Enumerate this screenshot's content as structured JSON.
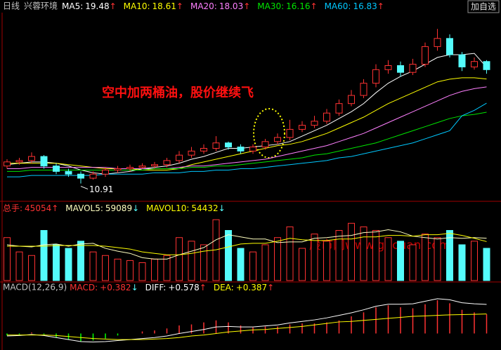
{
  "header": {
    "period": "日线",
    "stock": "兴蓉环境",
    "button": "加自选"
  },
  "watermark": "股市网www.gucuan.com",
  "chart_data": [
    {
      "type": "candlestick",
      "ylim": [
        9.7,
        23.4
      ],
      "up_color": "#ff3232",
      "down_color": "#54fcfc",
      "annotation": "空中加两桶油，股价继续飞",
      "open": [
        12.2,
        12.5,
        12.6,
        12.9,
        12.2,
        11.8,
        11.6,
        11.3,
        11.6,
        11.9,
        12.0,
        12.1,
        12.2,
        12.3,
        12.6,
        13.0,
        13.3,
        13.5,
        13.9,
        13.6,
        13.3,
        13.6,
        14.0,
        14.3,
        14.9,
        15.2,
        15.5,
        16.1,
        16.8,
        17.4,
        18.3,
        19.3,
        19.6,
        19.1,
        19.7,
        21.0,
        21.6,
        20.4,
        19.5,
        19.9
      ],
      "high": [
        12.7,
        12.8,
        13.2,
        13.0,
        12.4,
        12.0,
        11.8,
        11.8,
        12.1,
        12.2,
        12.3,
        12.4,
        12.5,
        12.8,
        13.3,
        13.6,
        13.8,
        14.4,
        14.0,
        13.8,
        13.8,
        14.2,
        14.6,
        15.6,
        15.5,
        15.9,
        16.4,
        17.1,
        17.8,
        18.6,
        19.7,
        20.0,
        19.9,
        20.1,
        21.3,
        22.3,
        21.9,
        20.6,
        20.2,
        20.0
      ],
      "low": [
        12.0,
        12.3,
        12.4,
        12.0,
        11.6,
        11.4,
        10.91,
        11.2,
        11.4,
        11.7,
        11.8,
        12.0,
        12.0,
        12.1,
        12.4,
        12.8,
        13.1,
        13.3,
        13.4,
        13.1,
        13.1,
        13.4,
        13.8,
        14.1,
        14.7,
        15.0,
        15.3,
        15.9,
        16.6,
        17.2,
        18.0,
        19.0,
        18.8,
        18.9,
        19.5,
        20.7,
        20.2,
        19.2,
        19.3,
        19.0
      ],
      "close": [
        12.5,
        12.6,
        12.9,
        12.2,
        11.8,
        11.6,
        11.3,
        11.6,
        11.9,
        12.0,
        12.1,
        12.2,
        12.3,
        12.6,
        13.0,
        13.3,
        13.5,
        13.9,
        13.6,
        13.3,
        13.6,
        14.0,
        14.3,
        14.9,
        15.2,
        15.5,
        16.1,
        16.8,
        17.4,
        18.3,
        19.3,
        19.6,
        19.1,
        19.7,
        21.0,
        21.6,
        20.4,
        19.5,
        19.9,
        19.3
      ],
      "series": [
        {
          "name": "MA5:",
          "color": "#ffffff",
          "trend": "↑",
          "trend_color": "#ff3232",
          "values": [
            12.3,
            12.4,
            12.5,
            12.5,
            12.4,
            12.2,
            11.9,
            11.7,
            11.6,
            11.7,
            11.8,
            12.0,
            12.1,
            12.2,
            12.4,
            12.7,
            12.9,
            13.2,
            13.5,
            13.5,
            13.6,
            13.7,
            13.8,
            14.0,
            14.4,
            14.8,
            15.2,
            15.7,
            16.2,
            16.8,
            17.6,
            18.3,
            18.8,
            19.2,
            19.7,
            20.2,
            20.4,
            20.4,
            20.5,
            19.48
          ]
        },
        {
          "name": "MA10:",
          "color": "#ffff00",
          "trend": "↑",
          "trend_color": "#ff3232",
          "values": [
            12.4,
            12.4,
            12.4,
            12.4,
            12.4,
            12.3,
            12.2,
            12.1,
            12.0,
            12.0,
            12.0,
            11.9,
            11.9,
            11.9,
            12.0,
            12.3,
            12.5,
            12.7,
            12.9,
            13.1,
            13.3,
            13.5,
            13.7,
            13.8,
            14.0,
            14.3,
            14.6,
            15.0,
            15.4,
            15.8,
            16.3,
            16.8,
            17.2,
            17.6,
            18.0,
            18.4,
            18.6,
            18.7,
            18.7,
            18.61
          ]
        },
        {
          "name": "MA20:",
          "color": "#ff80ff",
          "trend": "↑",
          "trend_color": "#ff3232",
          "values": [
            12.0,
            12.0,
            12.1,
            12.1,
            12.1,
            12.1,
            12.1,
            12.1,
            12.1,
            12.0,
            12.0,
            12.0,
            12.0,
            12.0,
            12.1,
            12.2,
            12.2,
            12.3,
            12.4,
            12.5,
            12.6,
            12.7,
            12.9,
            13.1,
            13.3,
            13.5,
            13.7,
            14.0,
            14.3,
            14.6,
            15.0,
            15.4,
            15.8,
            16.2,
            16.6,
            17.0,
            17.4,
            17.7,
            17.9,
            18.03
          ]
        },
        {
          "name": "MA30:",
          "color": "#00e600",
          "trend": "↑",
          "trend_color": "#ff3232",
          "values": [
            11.8,
            11.8,
            11.9,
            11.9,
            11.9,
            11.9,
            11.9,
            11.9,
            11.9,
            11.9,
            11.9,
            11.9,
            12.0,
            12.0,
            12.0,
            12.1,
            12.1,
            12.2,
            12.2,
            12.3,
            12.4,
            12.5,
            12.6,
            12.7,
            12.8,
            13.0,
            13.1,
            13.3,
            13.5,
            13.7,
            13.9,
            14.2,
            14.5,
            14.8,
            15.1,
            15.4,
            15.7,
            15.9,
            16.0,
            16.16
          ]
        },
        {
          "name": "MA60:",
          "color": "#00c8ff",
          "trend": "↑",
          "trend_color": "#ff3232",
          "values": [
            11.4,
            11.4,
            11.5,
            11.5,
            11.5,
            11.5,
            11.5,
            11.5,
            11.6,
            11.6,
            11.6,
            11.6,
            11.7,
            11.7,
            11.7,
            11.8,
            11.8,
            11.9,
            11.9,
            12.0,
            12.0,
            12.1,
            12.2,
            12.3,
            12.4,
            12.5,
            12.6,
            12.8,
            12.9,
            13.1,
            13.3,
            13.5,
            13.7,
            13.9,
            14.2,
            14.5,
            14.8,
            15.9,
            16.3,
            16.83
          ]
        }
      ]
    },
    {
      "type": "volume",
      "ylim": [
        0,
        95000
      ],
      "name": "总手:",
      "name_color": "#ff3232",
      "trend": "↑",
      "trend_color": "#ff3232",
      "values": [
        60000,
        40000,
        35000,
        70000,
        50000,
        45000,
        55000,
        40000,
        35000,
        30000,
        28000,
        25000,
        30000,
        35000,
        60000,
        55000,
        50000,
        85000,
        70000,
        45000,
        40000,
        50000,
        60000,
        75000,
        45000,
        65000,
        55000,
        70000,
        80000,
        75000,
        70000,
        60000,
        55000,
        50000,
        65000,
        60000,
        70000,
        50000,
        55000,
        45054
      ],
      "series": [
        {
          "name": "MAVOL5:",
          "color": "#ffffc0",
          "trend": "↓",
          "trend_color": "#54fcfc",
          "values": [
            50000,
            48000,
            47000,
            50000,
            51000,
            48000,
            51000,
            52000,
            45000,
            41000,
            38000,
            32000,
            30000,
            30000,
            36000,
            41000,
            46000,
            57000,
            64000,
            61000,
            58000,
            58000,
            53000,
            54000,
            54000,
            59000,
            60000,
            62000,
            63000,
            67000,
            68000,
            71000,
            68000,
            62000,
            60000,
            58000,
            60000,
            59000,
            60000,
            59089
          ]
        },
        {
          "name": "MAVOL10:",
          "color": "#ffff00",
          "trend": "↓",
          "trend_color": "#54fcfc",
          "values": [
            48000,
            48000,
            48000,
            48000,
            49000,
            49000,
            49000,
            49000,
            48000,
            46000,
            44000,
            40000,
            38000,
            36000,
            36000,
            38000,
            41000,
            43000,
            47000,
            51000,
            52000,
            52000,
            55000,
            59000,
            57000,
            56000,
            56000,
            58000,
            58000,
            61000,
            61000,
            63000,
            63000,
            62000,
            64000,
            64000,
            66000,
            63000,
            59000,
            54432
          ]
        }
      ]
    },
    {
      "type": "macd",
      "title": "MACD(12,26,9)",
      "ylim": [
        -0.3,
        0.8
      ],
      "pos_color": "#ff3232",
      "neg_color": "#00ff00",
      "name": "MACD:",
      "name_color": "#ff3232",
      "legend_value": {
        "value": 0.382,
        "label": "+0.382"
      },
      "trend": "↓",
      "trend_color": "#54fcfc",
      "values": [
        -0.04,
        -0.02,
        0.02,
        -0.02,
        -0.08,
        -0.12,
        -0.16,
        -0.14,
        -0.1,
        -0.04,
        0.0,
        0.04,
        0.06,
        0.1,
        0.16,
        0.18,
        0.22,
        0.26,
        0.22,
        0.16,
        0.12,
        0.14,
        0.14,
        0.18,
        0.2,
        0.2,
        0.22,
        0.26,
        0.34,
        0.42,
        0.52,
        0.56,
        0.52,
        0.5,
        0.58,
        0.66,
        0.6,
        0.47,
        0.42,
        0.382
      ],
      "series": [
        {
          "name": "DIFF:",
          "color": "#ffffff",
          "legend_value": {
            "value": 0.578,
            "label": "+0.578"
          },
          "trend": "↑",
          "trend_color": "#ff3232",
          "values": [
            -0.05,
            -0.04,
            -0.02,
            -0.04,
            -0.08,
            -0.12,
            -0.16,
            -0.17,
            -0.16,
            -0.14,
            -0.12,
            -0.1,
            -0.08,
            -0.05,
            0.0,
            0.04,
            0.08,
            0.13,
            0.14,
            0.13,
            0.13,
            0.15,
            0.17,
            0.21,
            0.24,
            0.27,
            0.31,
            0.36,
            0.41,
            0.47,
            0.54,
            0.58,
            0.58,
            0.59,
            0.64,
            0.69,
            0.67,
            0.61,
            0.59,
            0.578
          ]
        },
        {
          "name": "DEA:",
          "color": "#ffff00",
          "legend_value": {
            "value": 0.387,
            "label": "+0.387"
          },
          "trend": "↑",
          "trend_color": "#ff3232",
          "values": [
            -0.03,
            -0.03,
            -0.03,
            -0.03,
            -0.04,
            -0.06,
            -0.08,
            -0.1,
            -0.11,
            -0.12,
            -0.12,
            -0.12,
            -0.11,
            -0.1,
            -0.08,
            -0.05,
            -0.03,
            0.0,
            0.03,
            0.05,
            0.07,
            0.08,
            0.1,
            0.12,
            0.14,
            0.17,
            0.2,
            0.23,
            0.24,
            0.26,
            0.28,
            0.3,
            0.32,
            0.34,
            0.35,
            0.36,
            0.37,
            0.375,
            0.38,
            0.387
          ]
        }
      ]
    }
  ]
}
